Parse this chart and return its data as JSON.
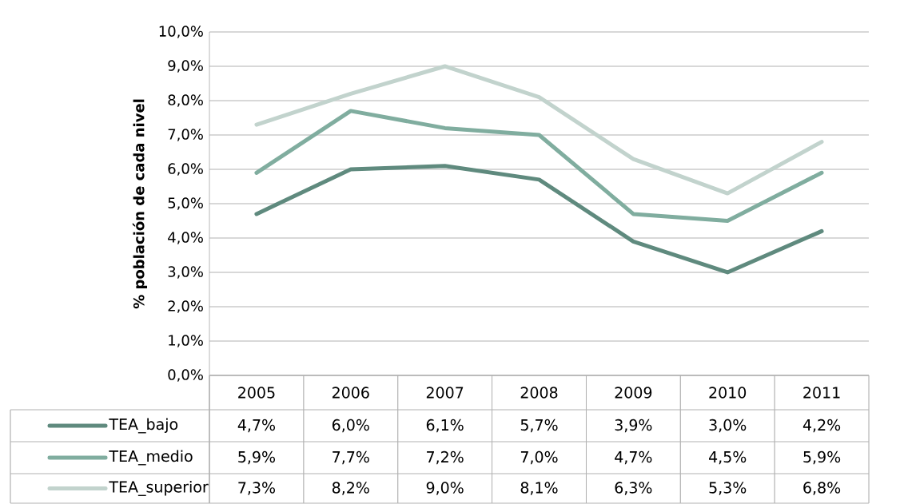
{
  "chart_data": {
    "type": "line",
    "ylabel": "% población de cada nivel",
    "categories": [
      "2005",
      "2006",
      "2007",
      "2008",
      "2009",
      "2010",
      "2011"
    ],
    "series": [
      {
        "name": "TEA_bajo",
        "color": "#5f8a7e",
        "values": [
          4.7,
          6.0,
          6.1,
          5.7,
          3.9,
          3.0,
          4.2
        ],
        "value_labels": [
          "4,7%",
          "6,0%",
          "6,1%",
          "5,7%",
          "3,9%",
          "3,0%",
          "4,2%"
        ]
      },
      {
        "name": "TEA_medio",
        "color": "#80ad9f",
        "values": [
          5.9,
          7.7,
          7.2,
          7.0,
          4.7,
          4.5,
          5.9
        ],
        "value_labels": [
          "5,9%",
          "7,7%",
          "7,2%",
          "7,0%",
          "4,7%",
          "4,5%",
          "5,9%"
        ]
      },
      {
        "name": "TEA_superior",
        "color": "#c2d3cd",
        "values": [
          7.3,
          8.2,
          9.0,
          8.1,
          6.3,
          5.3,
          6.8
        ],
        "value_labels": [
          "7,3%",
          "8,2%",
          "9,0%",
          "8,1%",
          "6,3%",
          "5,3%",
          "6,8%"
        ]
      }
    ],
    "ylim": [
      0,
      10
    ],
    "yticks": [
      {
        "value": 0,
        "label": "0,0%"
      },
      {
        "value": 1,
        "label": "1,0%"
      },
      {
        "value": 2,
        "label": "2,0%"
      },
      {
        "value": 3,
        "label": "3,0%"
      },
      {
        "value": 4,
        "label": "4,0%"
      },
      {
        "value": 5,
        "label": "5,0%"
      },
      {
        "value": 6,
        "label": "6,0%"
      },
      {
        "value": 7,
        "label": "7,0%"
      },
      {
        "value": 8,
        "label": "8,0%"
      },
      {
        "value": 9,
        "label": "9,0%"
      },
      {
        "value": 10,
        "label": "10,0%"
      }
    ],
    "grid": "y",
    "legend": "bottom",
    "marker": "none",
    "line_style": "solid"
  }
}
